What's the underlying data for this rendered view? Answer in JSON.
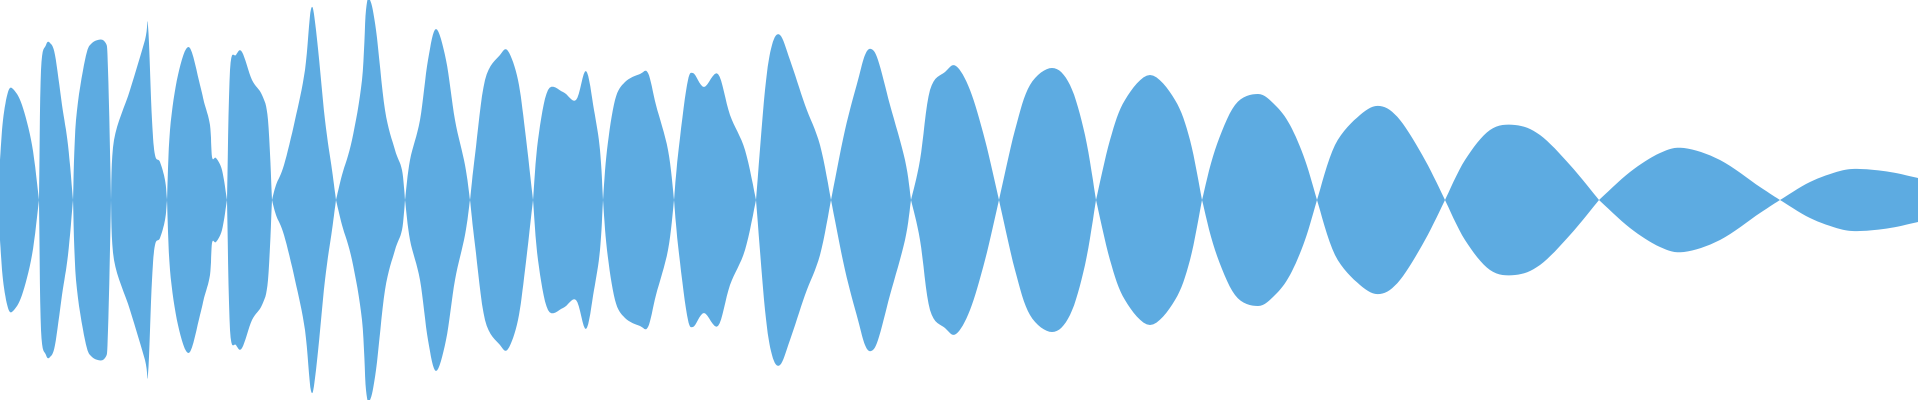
{
  "waveform": {
    "color": "#5dabe1",
    "background": "#ffffff"
  }
}
